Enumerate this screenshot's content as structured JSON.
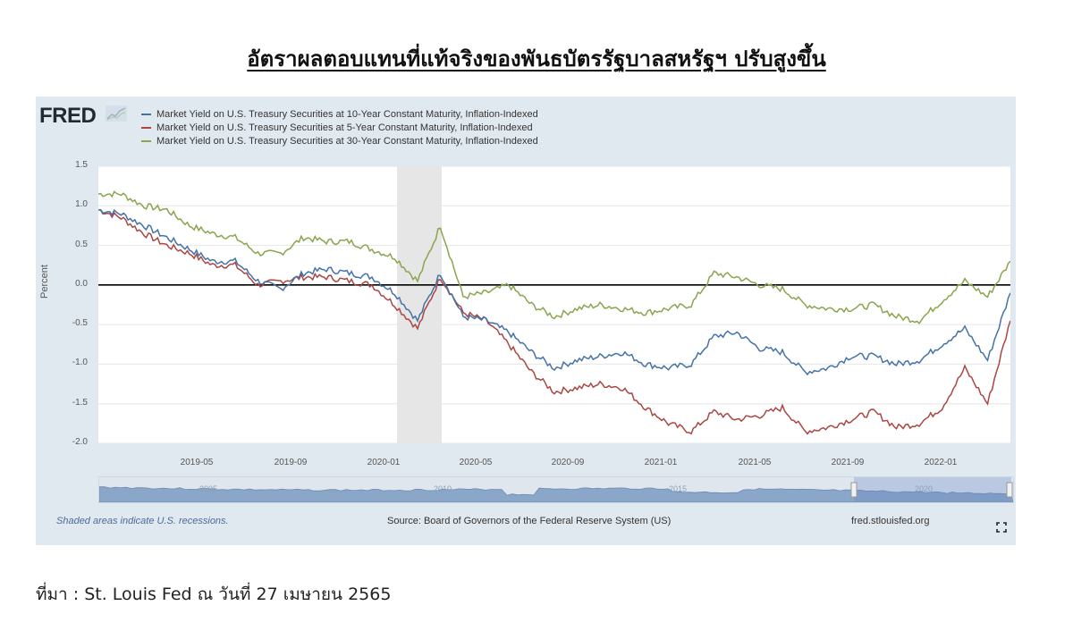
{
  "page": {
    "title": "อัตราผลตอบแทนที่แท้จริงของพันธบัตรรัฐบาลสหรัฐฯ ปรับสูงขึ้น",
    "source_line": "ที่มา : St. Louis Fed ณ วันที่ 27 เมษายน 2565"
  },
  "fred": {
    "logo": "FRED",
    "logo_icon": "chart-line-icon",
    "footer_left": "Shaded areas indicate U.S. recessions.",
    "footer_center": "Source: Board of Governors of the Federal Reserve System (US)",
    "footer_right": "fred.stlouisfed.org",
    "fullscreen_icon": "fullscreen-icon",
    "navigator_labels": [
      "2005",
      "2010",
      "2015",
      "2020"
    ]
  },
  "colors": {
    "series_10y": "#4572a7",
    "series_5y": "#aa4643",
    "series_30y": "#89a54e",
    "panel_bg": "#e1e9f0",
    "recession_shade": "#e6e6e6",
    "zero_line": "#000000"
  },
  "chart_data": {
    "type": "line",
    "title": "",
    "xlabel": "",
    "ylabel": "Percent",
    "ylim": [
      -2.0,
      1.5
    ],
    "y_ticks": [
      "1.5",
      "1.0",
      "0.5",
      "0.0",
      "-0.5",
      "-1.0",
      "-1.5",
      "-2.0"
    ],
    "x_ticks": [
      "2019-05",
      "2019-09",
      "2020-01",
      "2020-05",
      "2020-09",
      "2021-01",
      "2021-05",
      "2021-09",
      "2022-01"
    ],
    "grid": true,
    "legend_position": "top-left",
    "recession_shading": {
      "start": "2020-02",
      "end": "2020-04"
    },
    "x": [
      "2019-01",
      "2019-02",
      "2019-03",
      "2019-04",
      "2019-05",
      "2019-06",
      "2019-07",
      "2019-08",
      "2019-09",
      "2019-10",
      "2019-11",
      "2019-12",
      "2020-01",
      "2020-02",
      "2020-03a",
      "2020-03b",
      "2020-04",
      "2020-05",
      "2020-06",
      "2020-07",
      "2020-08",
      "2020-09",
      "2020-10",
      "2020-11",
      "2020-12",
      "2021-01",
      "2021-02",
      "2021-03",
      "2021-04",
      "2021-05",
      "2021-06",
      "2021-07",
      "2021-08",
      "2021-09",
      "2021-10",
      "2021-11",
      "2021-12",
      "2022-01",
      "2022-02",
      "2022-03",
      "2022-04"
    ],
    "series": [
      {
        "name": "Market Yield on U.S. Treasury Securities at 10-Year Constant Maturity, Inflation-Indexed",
        "color": "#4572a7",
        "values": [
          0.95,
          0.9,
          0.75,
          0.6,
          0.45,
          0.3,
          0.3,
          0.05,
          -0.05,
          0.15,
          0.2,
          0.15,
          0.1,
          -0.1,
          -0.45,
          0.15,
          -0.4,
          -0.45,
          -0.6,
          -0.85,
          -1.05,
          -0.95,
          -0.9,
          -0.85,
          -1.0,
          -1.05,
          -1.0,
          -0.65,
          -0.6,
          -0.8,
          -0.85,
          -1.1,
          -1.05,
          -0.9,
          -0.9,
          -1.0,
          -0.95,
          -0.75,
          -0.55,
          -0.95,
          -0.1
        ]
      },
      {
        "name": "Market Yield on U.S. Treasury Securities at 5-Year Constant Maturity, Inflation-Indexed",
        "color": "#aa4643",
        "values": [
          0.95,
          0.85,
          0.65,
          0.5,
          0.4,
          0.25,
          0.25,
          0.0,
          0.05,
          0.1,
          0.1,
          0.05,
          0.0,
          -0.25,
          -0.55,
          0.1,
          -0.35,
          -0.45,
          -0.75,
          -1.1,
          -1.35,
          -1.3,
          -1.25,
          -1.3,
          -1.55,
          -1.75,
          -1.85,
          -1.6,
          -1.7,
          -1.65,
          -1.55,
          -1.85,
          -1.8,
          -1.7,
          -1.6,
          -1.8,
          -1.75,
          -1.55,
          -1.05,
          -1.5,
          -0.45
        ]
      },
      {
        "name": "Market Yield on U.S. Treasury Securities at 30-Year Constant Maturity, Inflation-Indexed",
        "color": "#89a54e",
        "values": [
          1.15,
          1.15,
          1.0,
          0.95,
          0.75,
          0.65,
          0.6,
          0.4,
          0.4,
          0.6,
          0.55,
          0.55,
          0.45,
          0.35,
          0.05,
          0.75,
          -0.15,
          -0.1,
          0.0,
          -0.25,
          -0.4,
          -0.3,
          -0.25,
          -0.3,
          -0.35,
          -0.3,
          -0.25,
          0.15,
          0.1,
          0.0,
          -0.05,
          -0.25,
          -0.3,
          -0.3,
          -0.25,
          -0.4,
          -0.45,
          -0.2,
          0.05,
          -0.15,
          0.3
        ]
      }
    ]
  }
}
